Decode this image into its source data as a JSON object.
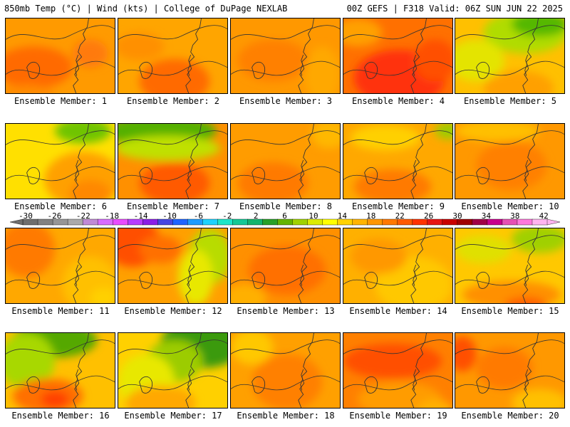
{
  "header": {
    "left": "850mb Temp (°C) | Wind (kts) | College of DuPage NEXLAB",
    "right": "00Z GEFS | F318 Valid: 06Z SUN JUN 22 2025"
  },
  "member_label_prefix": "Ensemble Member: ",
  "members": [
    {
      "id": 1,
      "base": "#ff9a00",
      "blobs": [
        [
          "#ff6a00",
          40,
          70,
          55,
          30
        ],
        [
          "#ff7a10",
          120,
          50,
          25,
          20
        ],
        [
          "#ff8c00",
          30,
          110,
          40,
          15
        ]
      ]
    },
    {
      "id": 2,
      "base": "#ffa500",
      "blobs": [
        [
          "#ff6a00",
          80,
          90,
          50,
          32
        ],
        [
          "#ff9000",
          30,
          40,
          35,
          20
        ]
      ]
    },
    {
      "id": 3,
      "base": "#ff9800",
      "blobs": [
        [
          "#ff8000",
          60,
          60,
          50,
          30
        ],
        [
          "#ffa800",
          130,
          80,
          25,
          40
        ]
      ]
    },
    {
      "id": 4,
      "base": "#ff7000",
      "blobs": [
        [
          "#ff3010",
          80,
          85,
          65,
          40
        ],
        [
          "#ffa000",
          20,
          20,
          35,
          20
        ],
        [
          "#ff5000",
          130,
          60,
          30,
          30
        ]
      ]
    },
    {
      "id": 5,
      "base": "#ffc000",
      "blobs": [
        [
          "#b0dc00",
          100,
          20,
          60,
          30
        ],
        [
          "#55b800",
          120,
          8,
          40,
          18
        ],
        [
          "#e4e400",
          30,
          60,
          40,
          30
        ],
        [
          "#ffa000",
          90,
          100,
          50,
          25
        ]
      ]
    },
    {
      "id": 6,
      "base": "#ffe000",
      "blobs": [
        [
          "#ffa000",
          110,
          80,
          55,
          40
        ],
        [
          "#70c400",
          110,
          10,
          40,
          18
        ],
        [
          "#ff8800",
          120,
          100,
          30,
          20
        ]
      ]
    },
    {
      "id": 7,
      "base": "#ff9000",
      "blobs": [
        [
          "#55b000",
          60,
          10,
          80,
          22
        ],
        [
          "#c0e000",
          70,
          35,
          75,
          18
        ],
        [
          "#ff5a00",
          80,
          85,
          50,
          30
        ]
      ]
    },
    {
      "id": 8,
      "base": "#ff9c00",
      "blobs": [
        [
          "#ff7a00",
          60,
          85,
          50,
          30
        ],
        [
          "#ffb800",
          140,
          15,
          25,
          20
        ]
      ]
    },
    {
      "id": 9,
      "base": "#ffa800",
      "blobs": [
        [
          "#ff7a00",
          70,
          90,
          55,
          25
        ],
        [
          "#ffd000",
          60,
          20,
          50,
          18
        ],
        [
          "#9ccc00",
          150,
          10,
          20,
          12
        ]
      ]
    },
    {
      "id": 10,
      "base": "#ff9800",
      "blobs": [
        [
          "#ff8000",
          80,
          60,
          50,
          35
        ],
        [
          "#ffc000",
          60,
          10,
          60,
          15
        ]
      ]
    },
    {
      "id": 11,
      "base": "#ffa800",
      "blobs": [
        [
          "#ff7a00",
          30,
          30,
          40,
          40
        ],
        [
          "#ffc000",
          120,
          80,
          40,
          40
        ],
        [
          "#ffd000",
          140,
          100,
          20,
          15
        ]
      ]
    },
    {
      "id": 12,
      "base": "#ffa000",
      "blobs": [
        [
          "#ff5000",
          20,
          20,
          40,
          35
        ],
        [
          "#b8dc00",
          130,
          40,
          30,
          40
        ],
        [
          "#e8e800",
          110,
          70,
          25,
          40
        ],
        [
          "#ff7000",
          60,
          30,
          30,
          20
        ]
      ]
    },
    {
      "id": 13,
      "base": "#ff9000",
      "blobs": [
        [
          "#ff7000",
          80,
          60,
          55,
          35
        ],
        [
          "#ffb000",
          20,
          100,
          30,
          20
        ]
      ]
    },
    {
      "id": 14,
      "base": "#ffb000",
      "blobs": [
        [
          "#ffc800",
          100,
          80,
          55,
          40
        ],
        [
          "#ff9800",
          50,
          40,
          40,
          25
        ]
      ]
    },
    {
      "id": 15,
      "base": "#ffc800",
      "blobs": [
        [
          "#ff9000",
          80,
          95,
          70,
          20
        ],
        [
          "#a0d000",
          120,
          15,
          40,
          20
        ],
        [
          "#ff6000",
          100,
          110,
          30,
          12
        ],
        [
          "#e0e000",
          40,
          30,
          40,
          20
        ]
      ]
    },
    {
      "id": 16,
      "base": "#ffc000",
      "blobs": [
        [
          "#55a800",
          70,
          10,
          60,
          25
        ],
        [
          "#a8d800",
          30,
          40,
          40,
          40
        ],
        [
          "#ff7000",
          60,
          90,
          50,
          25
        ],
        [
          "#ff4000",
          70,
          95,
          20,
          12
        ]
      ]
    },
    {
      "id": 17,
      "base": "#ffd000",
      "blobs": [
        [
          "#3a9a10",
          120,
          15,
          60,
          35
        ],
        [
          "#9ccc00",
          80,
          40,
          40,
          30
        ],
        [
          "#e8e800",
          40,
          70,
          40,
          40
        ],
        [
          "#ffa800",
          60,
          100,
          50,
          25
        ]
      ]
    },
    {
      "id": 18,
      "base": "#ffa000",
      "blobs": [
        [
          "#ff8000",
          80,
          70,
          50,
          40
        ],
        [
          "#ffc800",
          30,
          20,
          30,
          25
        ]
      ]
    },
    {
      "id": 19,
      "base": "#ff8000",
      "blobs": [
        [
          "#ff5000",
          70,
          40,
          70,
          25
        ],
        [
          "#ff9c00",
          80,
          95,
          60,
          25
        ],
        [
          "#ffb000",
          130,
          110,
          25,
          15
        ]
      ]
    },
    {
      "id": 20,
      "base": "#ff9800",
      "blobs": [
        [
          "#ff5000",
          10,
          30,
          20,
          25
        ],
        [
          "#ff7a00",
          70,
          50,
          40,
          30
        ],
        [
          "#ffc000",
          120,
          100,
          40,
          20
        ]
      ]
    }
  ],
  "colorbar": {
    "ticks": [
      "-30",
      "-26",
      "-22",
      "-18",
      "-14",
      "-10",
      "-6",
      "-2",
      "2",
      "6",
      "10",
      "14",
      "18",
      "22",
      "26",
      "30",
      "34",
      "38",
      "42"
    ],
    "colors": [
      "#6e6e6e",
      "#828282",
      "#969696",
      "#aaaaaa",
      "#c08ad6",
      "#d86cff",
      "#e84cff",
      "#b63cff",
      "#8a1ee6",
      "#4646e0",
      "#1e64ff",
      "#1e9cff",
      "#1ed2ff",
      "#1ee6c8",
      "#14c896",
      "#14b46e",
      "#28a028",
      "#64b400",
      "#a0d200",
      "#dcec00",
      "#ffff00",
      "#ffd200",
      "#ffb400",
      "#ff9600",
      "#ff7800",
      "#ff5a00",
      "#ff3200",
      "#e61414",
      "#c80000",
      "#a00000",
      "#a00046",
      "#c8008c",
      "#e650b4",
      "#ff78dc",
      "#ffb4f0"
    ]
  }
}
